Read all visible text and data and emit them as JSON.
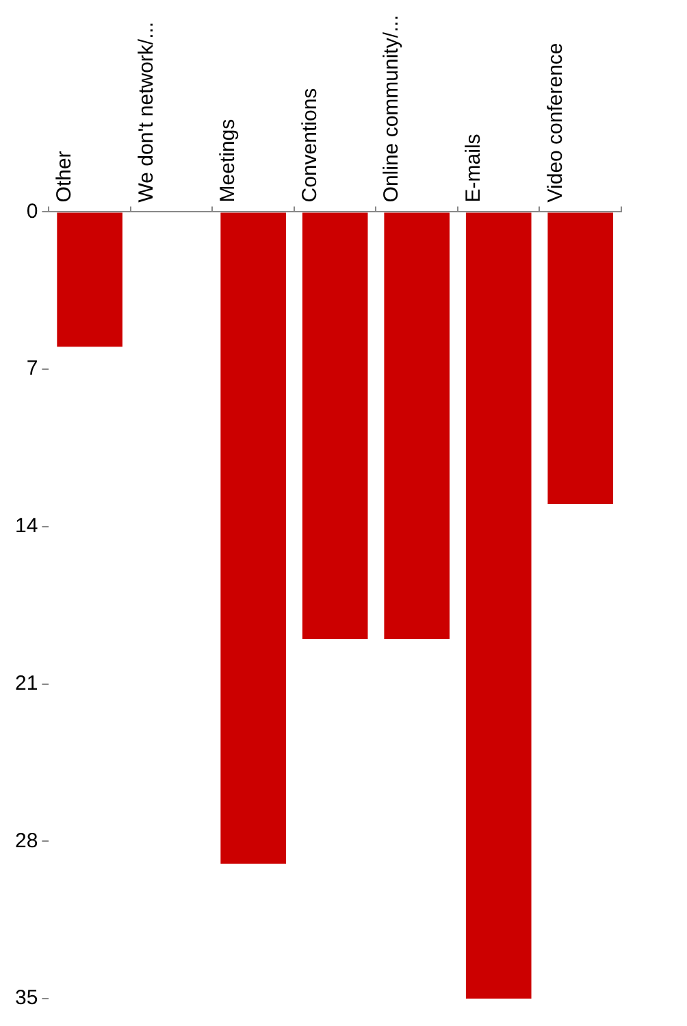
{
  "chart_data": {
    "type": "bar",
    "categories": [
      "Other",
      "We don't network/...",
      "Meetings",
      "Conventions",
      "Online community/...",
      "E-mails",
      "Video conference"
    ],
    "values": [
      6,
      0,
      29,
      19,
      19,
      35,
      13
    ],
    "color": "#cc0000",
    "ylim": [
      35,
      0
    ],
    "yticks": [
      0,
      7,
      14,
      21,
      28,
      35
    ]
  }
}
